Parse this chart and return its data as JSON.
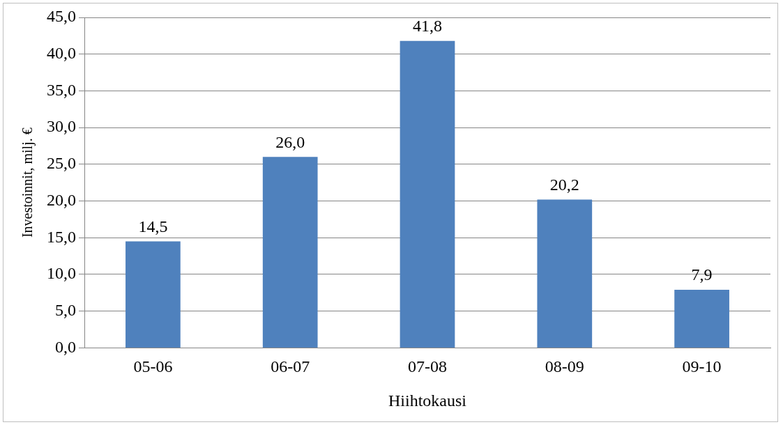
{
  "chart_data": {
    "type": "bar",
    "xlabel": "Hiihtokausi",
    "ylabel": "Investoinnit, milj. €",
    "categories": [
      "05-06",
      "06-07",
      "07-08",
      "08-09",
      "09-10"
    ],
    "values": [
      14.5,
      26.0,
      41.8,
      20.2,
      7.9
    ],
    "value_labels": [
      "14,5",
      "26,0",
      "41,8",
      "20,2",
      "7,9"
    ],
    "color": "#4f81bd",
    "ylim": [
      0,
      45
    ],
    "yticks": [
      {
        "value": 0,
        "label": "0,0"
      },
      {
        "value": 5,
        "label": "5,0"
      },
      {
        "value": 10,
        "label": "10,0"
      },
      {
        "value": 15,
        "label": "15,0"
      },
      {
        "value": 20,
        "label": "20,0"
      },
      {
        "value": 25,
        "label": "25,0"
      },
      {
        "value": 30,
        "label": "30,0"
      },
      {
        "value": 35,
        "label": "35,0"
      },
      {
        "value": 40,
        "label": "40,0"
      },
      {
        "value": 45,
        "label": "45,0"
      }
    ],
    "grid": "y",
    "legend": false
  }
}
